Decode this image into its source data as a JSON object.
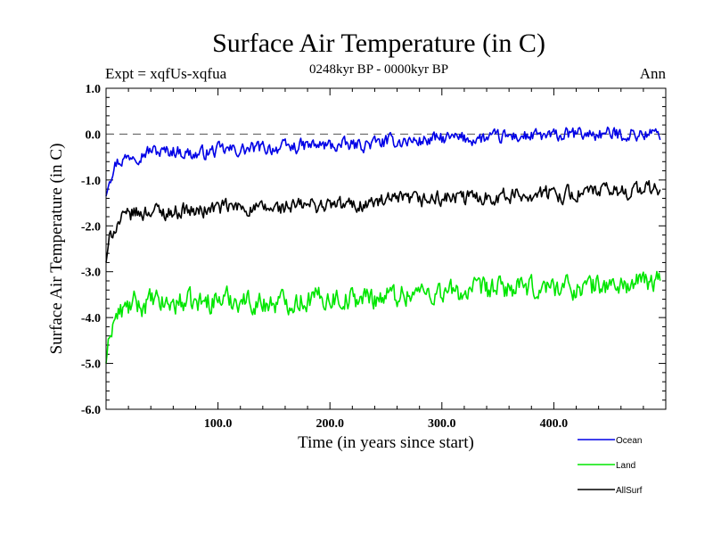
{
  "chart_data": {
    "type": "line",
    "title": "Surface Air Temperature (in C)",
    "subtitle": "0248kyr BP - 0000kyr BP",
    "expt_label": "Expt = xqfUs-xqfua",
    "season_label": "Ann",
    "xlabel": "Time (in years since start)",
    "ylabel": "Surface Air Temperature (in C)",
    "xlim": [
      0,
      500
    ],
    "ylim": [
      -6.0,
      1.0
    ],
    "x_ticks": [
      100,
      200,
      300,
      400
    ],
    "x_tick_labels": [
      "100.0",
      "200.0",
      "300.0",
      "400.0"
    ],
    "y_ticks": [
      -6,
      -5,
      -4,
      -3,
      -2,
      -1,
      0,
      1
    ],
    "y_tick_labels": [
      "-6.0",
      "-5.0",
      "-4.0",
      "-3.0",
      "-2.0",
      "-1.0",
      "0.0",
      "1.0"
    ],
    "reference_line": 0.0,
    "series": [
      {
        "name": "Ocean",
        "color": "#0000e6",
        "x": [
          0,
          3,
          6,
          10,
          15,
          20,
          25,
          30,
          40,
          50,
          60,
          70,
          80,
          90,
          100,
          120,
          140,
          160,
          180,
          200,
          220,
          240,
          260,
          280,
          300,
          320,
          340,
          360,
          380,
          400,
          420,
          440,
          460,
          480,
          495
        ],
        "values": [
          -1.35,
          -0.95,
          -0.75,
          -0.6,
          -0.55,
          -0.5,
          -0.4,
          -0.45,
          -0.35,
          -0.4,
          -0.35,
          -0.4,
          -0.45,
          -0.4,
          -0.35,
          -0.35,
          -0.3,
          -0.3,
          -0.25,
          -0.25,
          -0.25,
          -0.2,
          -0.15,
          -0.15,
          -0.1,
          -0.1,
          -0.1,
          -0.05,
          -0.05,
          -0.05,
          0.0,
          0.0,
          0.0,
          0.0,
          0.0
        ]
      },
      {
        "name": "Land",
        "color": "#00e600",
        "x": [
          0,
          3,
          6,
          10,
          15,
          20,
          25,
          30,
          40,
          50,
          60,
          70,
          80,
          90,
          100,
          120,
          140,
          160,
          180,
          200,
          220,
          240,
          260,
          280,
          300,
          320,
          340,
          360,
          380,
          400,
          420,
          440,
          460,
          480,
          495
        ],
        "values": [
          -5.0,
          -4.4,
          -4.1,
          -3.95,
          -3.85,
          -3.8,
          -3.7,
          -3.75,
          -3.65,
          -3.7,
          -3.7,
          -3.65,
          -3.7,
          -3.65,
          -3.6,
          -3.6,
          -3.7,
          -3.65,
          -3.6,
          -3.55,
          -3.6,
          -3.55,
          -3.5,
          -3.45,
          -3.45,
          -3.45,
          -3.4,
          -3.35,
          -3.4,
          -3.3,
          -3.35,
          -3.3,
          -3.3,
          -3.25,
          -3.2
        ]
      },
      {
        "name": "AllSurf",
        "color": "#000000",
        "x": [
          0,
          3,
          6,
          10,
          15,
          20,
          25,
          30,
          40,
          50,
          60,
          70,
          80,
          90,
          100,
          120,
          140,
          160,
          180,
          200,
          220,
          240,
          260,
          280,
          300,
          320,
          340,
          360,
          380,
          400,
          420,
          440,
          460,
          480,
          495
        ],
        "values": [
          -2.8,
          -2.3,
          -2.1,
          -1.95,
          -1.85,
          -1.8,
          -1.7,
          -1.75,
          -1.65,
          -1.7,
          -1.7,
          -1.65,
          -1.7,
          -1.65,
          -1.6,
          -1.6,
          -1.65,
          -1.6,
          -1.55,
          -1.55,
          -1.55,
          -1.5,
          -1.45,
          -1.45,
          -1.4,
          -1.4,
          -1.35,
          -1.35,
          -1.3,
          -1.3,
          -1.3,
          -1.25,
          -1.25,
          -1.2,
          -1.2
        ]
      }
    ],
    "legend_position": "bottom-right"
  }
}
